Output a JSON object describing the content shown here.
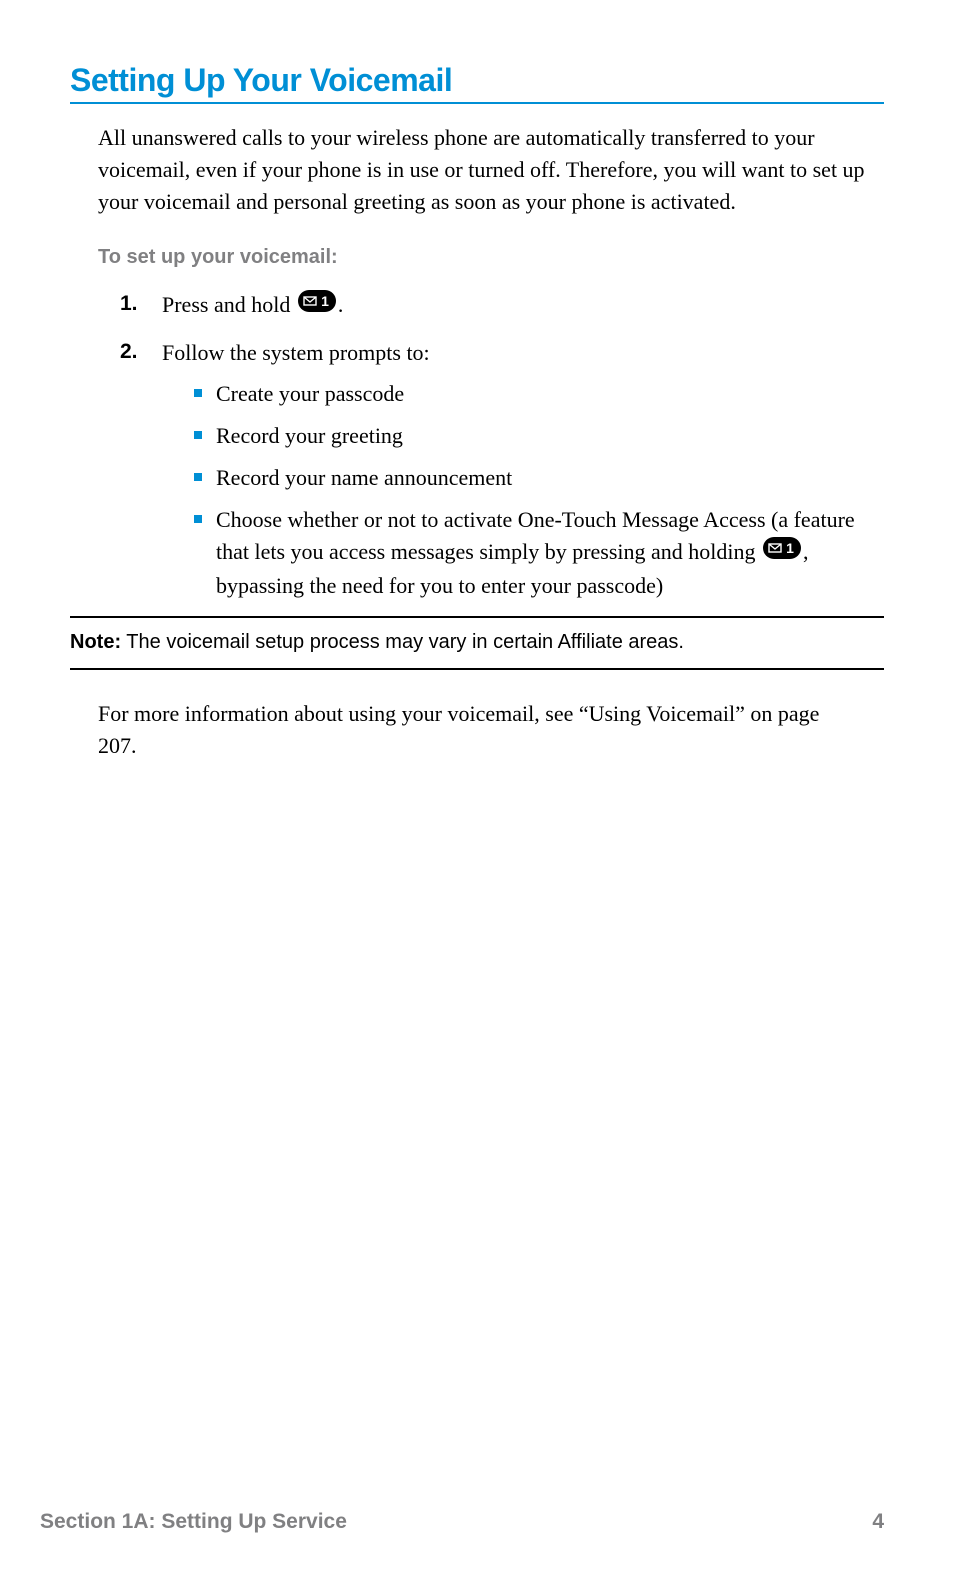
{
  "colors": {
    "accent": "#008fd5",
    "muted_text": "#808082",
    "body_text": "#000000",
    "background": "#ffffff",
    "rule": "#000000"
  },
  "typography": {
    "title_font": "Helvetica Neue",
    "title_size_pt": 24,
    "title_weight": 700,
    "body_font": "Georgia",
    "body_size_pt": 16,
    "subhead_size_pt": 15,
    "footer_size_pt": 16
  },
  "title": "Setting Up Your Voicemail",
  "intro": "All unanswered calls to your wireless phone are automatically transferred to your voicemail, even if your phone is in use or turned off. Therefore, you will want to set up your voicemail and personal greeting as soon as your phone is activated.",
  "sub_heading": "To set up your voicemail:",
  "steps": [
    {
      "num": "1.",
      "text_before": "Press and hold ",
      "has_icon": true,
      "text_after": "."
    },
    {
      "num": "2.",
      "text_before": "Follow the system prompts to:",
      "has_icon": false,
      "text_after": "",
      "bullets": [
        "Create your passcode",
        "Record your greeting",
        "Record your name announcement",
        {
          "before": "Choose whether or not to activate One-Touch Message Access (a feature that lets you access messages simply by pressing and holding ",
          "has_icon": true,
          "after": ", bypassing the need for you to enter your passcode)"
        }
      ]
    }
  ],
  "note": {
    "label": "Note:",
    "text": " The voicemail setup process may vary in certain Affiliate areas."
  },
  "more_info": "For more information about using your voicemail, see “Using Voicemail” on page 207.",
  "footer": {
    "section": "Section 1A: Setting Up Service",
    "page": "4"
  },
  "icon": {
    "name": "mail-1-key",
    "width": 38,
    "height": 22,
    "bg": "#000000",
    "fg": "#ffffff"
  }
}
